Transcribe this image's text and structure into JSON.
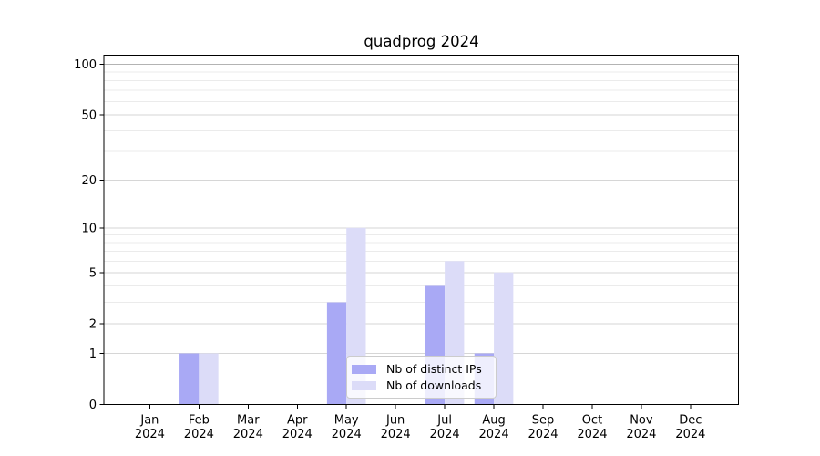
{
  "title": "quadprog 2024",
  "colors": {
    "bar_distinct_ips": "#a9a9f5",
    "bar_downloads": "#dcdcf8",
    "grid_major": "#d6d6d6",
    "grid_minor": "#ebebeb",
    "grid_100": "#b3b3b3",
    "axis": "#000000",
    "tick_label": "#000000",
    "legend_border": "#cccccc"
  },
  "chart_data": {
    "type": "bar",
    "title": "quadprog 2024",
    "categories": [
      "Jan 2024",
      "Feb 2024",
      "Mar 2024",
      "Apr 2024",
      "May 2024",
      "Jun 2024",
      "Jul 2024",
      "Aug 2024",
      "Sep 2024",
      "Oct 2024",
      "Nov 2024",
      "Dec 2024"
    ],
    "x_tick_labels": [
      [
        "Jan",
        "2024"
      ],
      [
        "Feb",
        "2024"
      ],
      [
        "Mar",
        "2024"
      ],
      [
        "Apr",
        "2024"
      ],
      [
        "May",
        "2024"
      ],
      [
        "Jun",
        "2024"
      ],
      [
        "Jul",
        "2024"
      ],
      [
        "Aug",
        "2024"
      ],
      [
        "Sep",
        "2024"
      ],
      [
        "Oct",
        "2024"
      ],
      [
        "Nov",
        "2024"
      ],
      [
        "Dec",
        "2024"
      ]
    ],
    "series": [
      {
        "name": "Nb of distinct IPs",
        "color": "#a9a9f5",
        "values": [
          0,
          1,
          0,
          0,
          3,
          0,
          4,
          1,
          0,
          0,
          0,
          0
        ]
      },
      {
        "name": "Nb of downloads",
        "color": "#dcdcf8",
        "values": [
          0,
          1,
          0,
          0,
          10,
          0,
          6,
          5,
          0,
          0,
          0,
          0
        ]
      }
    ],
    "y_axis": {
      "scale": "log1p",
      "ticks": [
        0,
        1,
        2,
        5,
        10,
        20,
        50,
        100
      ],
      "minor_ticks": [
        3,
        4,
        6,
        7,
        8,
        9,
        30,
        40,
        60,
        70,
        80,
        90
      ],
      "ylim": [
        0,
        113
      ]
    },
    "grid": true,
    "legend_position": "lower center"
  }
}
